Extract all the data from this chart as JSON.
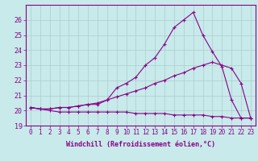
{
  "xlabel": "Windchill (Refroidissement éolien,°C)",
  "x_ticks": [
    0,
    1,
    2,
    3,
    4,
    5,
    6,
    7,
    8,
    9,
    10,
    11,
    12,
    13,
    14,
    15,
    16,
    17,
    18,
    19,
    20,
    21,
    22,
    23
  ],
  "ylim": [
    19,
    27
  ],
  "yticks": [
    19,
    20,
    21,
    22,
    23,
    24,
    25,
    26
  ],
  "xlim": [
    -0.5,
    23.5
  ],
  "background_color": "#c8eaea",
  "grid_color": "#aacccc",
  "line_color": "#880088",
  "series1": [
    20.2,
    20.1,
    20.1,
    20.2,
    20.2,
    20.3,
    20.4,
    20.4,
    20.7,
    21.5,
    21.8,
    22.2,
    23.0,
    23.5,
    24.4,
    25.5,
    26.0,
    26.5,
    25.0,
    23.9,
    22.9,
    20.7,
    19.5,
    19.5
  ],
  "series2": [
    20.2,
    20.1,
    20.1,
    20.2,
    20.2,
    20.3,
    20.4,
    20.5,
    20.7,
    20.9,
    21.1,
    21.3,
    21.5,
    21.8,
    22.0,
    22.3,
    22.5,
    22.8,
    23.0,
    23.2,
    23.0,
    22.8,
    21.8,
    19.5
  ],
  "series3": [
    20.2,
    20.1,
    20.0,
    19.9,
    19.9,
    19.9,
    19.9,
    19.9,
    19.9,
    19.9,
    19.9,
    19.8,
    19.8,
    19.8,
    19.8,
    19.7,
    19.7,
    19.7,
    19.7,
    19.6,
    19.6,
    19.5,
    19.5,
    19.5
  ],
  "tick_fontsize": 5.5,
  "xlabel_fontsize": 6.0,
  "linewidth": 0.8,
  "markersize": 3
}
